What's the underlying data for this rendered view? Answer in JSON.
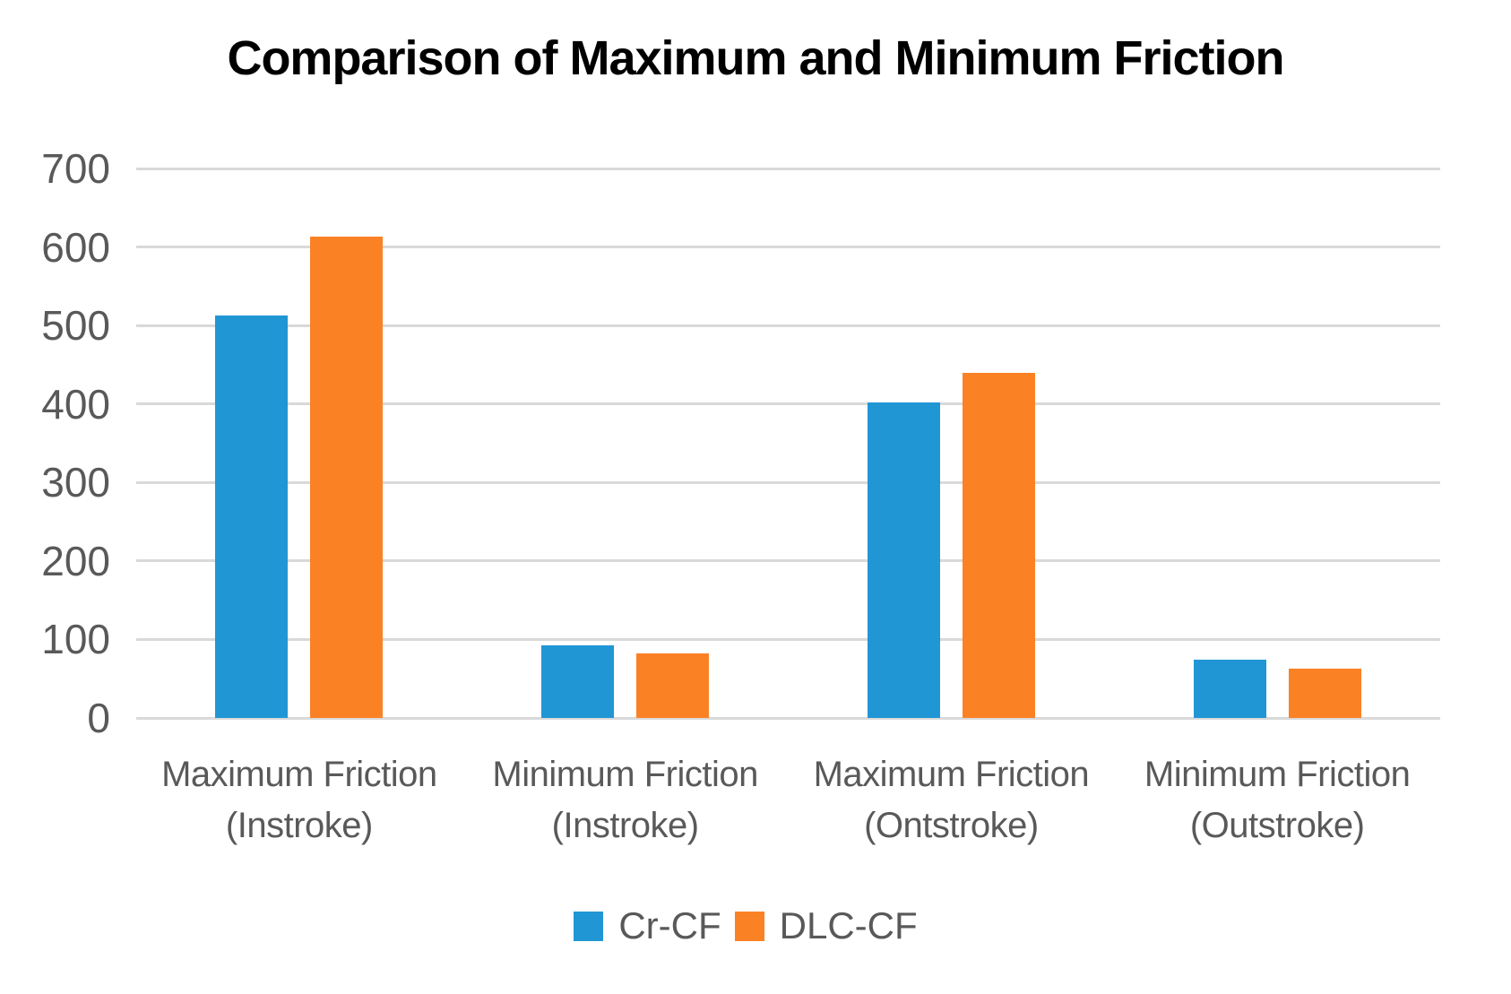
{
  "chart_data": {
    "type": "bar",
    "title": "Comparison of Maximum and Minimum Friction",
    "categories": [
      {
        "line1": "Maximum Friction",
        "line2": "(Instroke)"
      },
      {
        "line1": "Minimum Friction",
        "line2": "(Instroke)"
      },
      {
        "line1": "Maximum Friction",
        "line2": "(Ontstroke)"
      },
      {
        "line1": "Minimum Friction",
        "line2": "(Outstroke)"
      }
    ],
    "series": [
      {
        "name": "Cr-CF",
        "color": "#2196D5",
        "values": [
          513,
          93,
          402,
          74
        ]
      },
      {
        "name": "DLC-CF",
        "color": "#FB8125",
        "values": [
          613,
          82,
          440,
          63
        ]
      }
    ],
    "ylim": [
      0,
      700
    ],
    "yticks": [
      0,
      100,
      200,
      300,
      400,
      500,
      600,
      700
    ],
    "grid": true,
    "legend_position": "bottom",
    "colors": {
      "gridline": "#D9D9D9",
      "axis_text": "#595959",
      "title_text": "#000000",
      "background": "#FFFFFF"
    }
  }
}
